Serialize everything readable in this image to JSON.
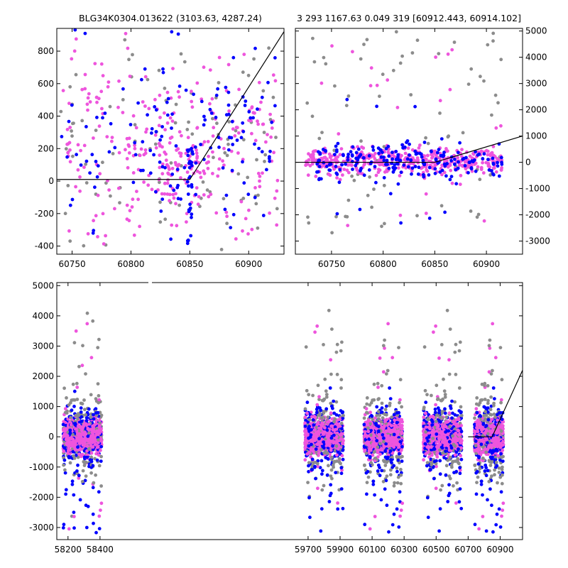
{
  "titles": {
    "left": "BLG34K0304.013622 (3103.63, 4287.24)",
    "right": "3 293 1167.63 0.049 319 [60912.443, 60914.102]"
  },
  "colors": {
    "gray": "#8c8c8c",
    "blue": "#0000ff",
    "magenta": "#ee55dd",
    "line": "#000000"
  },
  "chart_data": [
    {
      "type": "scatter",
      "panel": "top-left",
      "xlim": [
        60737,
        60930
      ],
      "ylim": [
        -450,
        940
      ],
      "xticks": [
        60750,
        60800,
        60850,
        60900
      ],
      "yticks": [
        -400,
        -200,
        0,
        200,
        400,
        600,
        800
      ],
      "yaxis_side": "left",
      "model_line": {
        "x": [
          60737,
          60850,
          60930
        ],
        "y": [
          10,
          10,
          920
        ]
      },
      "series": [
        {
          "color": "gray",
          "clusters": [
            {
              "xr": [
                60740,
                60925
              ],
              "yr": [
                -440,
                900
              ],
              "n": 110
            }
          ]
        },
        {
          "color": "magenta",
          "clusters": [
            {
              "xr": [
                60740,
                60925
              ],
              "yr": [
                -430,
                880
              ],
              "n": 260
            },
            {
              "xr": [
                60820,
                60870
              ],
              "yr": [
                -100,
                300
              ],
              "n": 60
            }
          ]
        },
        {
          "color": "blue",
          "clusters": [
            {
              "xr": [
                60740,
                60925
              ],
              "yr": [
                -440,
                880
              ],
              "n": 150
            },
            {
              "xr": [
                60848,
                60852
              ],
              "yr": [
                -400,
                200
              ],
              "n": 30
            }
          ]
        }
      ]
    },
    {
      "type": "scatter",
      "panel": "top-right",
      "xlim": [
        60715,
        60935
      ],
      "ylim": [
        -3500,
        5100
      ],
      "xticks": [
        60750,
        60800,
        60850,
        60900
      ],
      "yticks": [
        -3000,
        -2000,
        -1000,
        0,
        1000,
        2000,
        3000,
        4000,
        5000
      ],
      "yaxis_side": "right",
      "model_line": {
        "x": [
          60715,
          60850,
          60935
        ],
        "y": [
          0,
          0,
          1000
        ]
      },
      "series": [
        {
          "color": "gray",
          "clusters": [
            {
              "xr": [
                60725,
                60915
              ],
              "yr": [
                -2800,
                5000
              ],
              "n": 80,
              "spread": "wide"
            }
          ]
        },
        {
          "color": "magenta",
          "clusters": [
            {
              "xr": [
                60725,
                60915
              ],
              "yr": [
                -500,
                600
              ],
              "n": 420
            },
            {
              "xr": [
                60725,
                60915
              ],
              "yr": [
                -2600,
                4500
              ],
              "n": 30
            }
          ]
        },
        {
          "color": "blue",
          "clusters": [
            {
              "xr": [
                60735,
                60915
              ],
              "yr": [
                -700,
                800
              ],
              "n": 200
            },
            {
              "xr": [
                60735,
                60915
              ],
              "yr": [
                -2700,
                2600
              ],
              "n": 12
            }
          ]
        }
      ]
    },
    {
      "type": "scatter",
      "panel": "bottom",
      "xlim": [
        58130,
        61040
      ],
      "ylim": [
        -3400,
        5100
      ],
      "xticks": [
        58200,
        58400,
        59700,
        59900,
        60100,
        60300,
        60500,
        60700,
        60900
      ],
      "yticks": [
        -3000,
        -2000,
        -1000,
        0,
        1000,
        2000,
        3000,
        4000,
        5000
      ],
      "yaxis_side": "left",
      "model_line": {
        "x": [
          60700,
          60850,
          61040
        ],
        "y": [
          0,
          0,
          2200
        ]
      },
      "seasons": [
        {
          "xr": [
            58170,
            58410
          ]
        },
        {
          "xr": [
            59680,
            59920
          ]
        },
        {
          "xr": [
            60050,
            60290
          ]
        },
        {
          "xr": [
            60420,
            60660
          ]
        },
        {
          "xr": [
            60740,
            60920
          ]
        }
      ]
    }
  ]
}
